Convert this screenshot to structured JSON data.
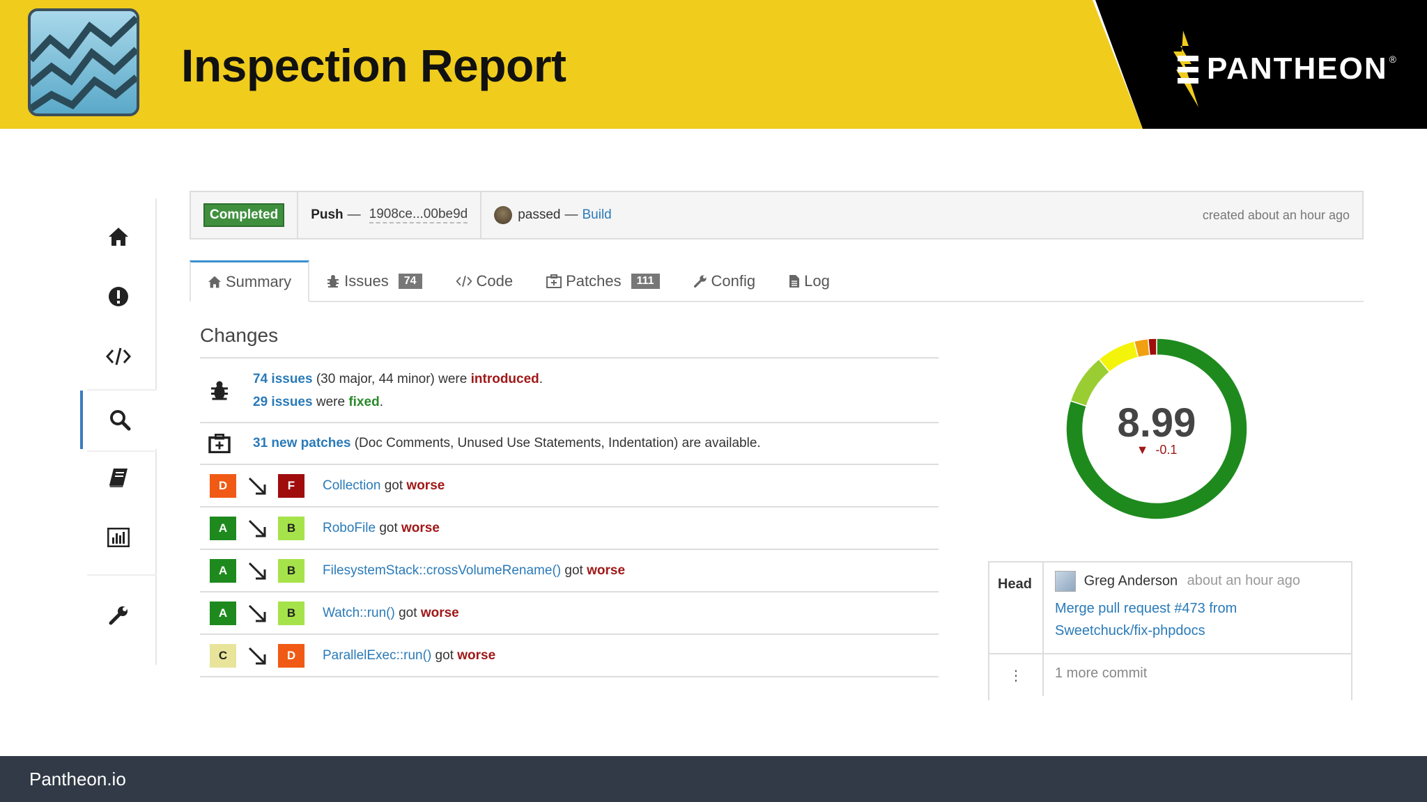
{
  "header": {
    "title": "Inspection Report",
    "brand": "PANTHEON",
    "brand_mark": "®"
  },
  "sidebar": {
    "items": [
      {
        "name": "home",
        "icon": "home-icon"
      },
      {
        "name": "issues",
        "icon": "exclamation-icon"
      },
      {
        "name": "code",
        "icon": "code-icon"
      },
      {
        "name": "inspect",
        "icon": "search-icon",
        "active": true
      },
      {
        "name": "docs",
        "icon": "book-icon"
      },
      {
        "name": "stats",
        "icon": "bar-chart-icon"
      },
      {
        "name": "settings",
        "icon": "wrench-icon"
      }
    ]
  },
  "status": {
    "badge": "Completed",
    "push_label": "Push",
    "dash": "—",
    "sha": "1908ce...00be9d",
    "result": "passed",
    "build_link": "Build",
    "created": "created about an hour ago"
  },
  "tabs": [
    {
      "label": "Summary",
      "icon": "home-icon"
    },
    {
      "label": "Issues",
      "count": "74",
      "icon": "bug-icon"
    },
    {
      "label": "Code",
      "icon": "code-icon"
    },
    {
      "label": "Patches",
      "count": "111",
      "icon": "medkit-icon"
    },
    {
      "label": "Config",
      "icon": "wrench-icon"
    },
    {
      "label": "Log",
      "icon": "file-icon"
    }
  ],
  "changes": {
    "title": "Changes",
    "issues_intro": {
      "count_link": "74 issues",
      "detail": " (30 major, 44 minor) were ",
      "status": "introduced",
      "end": "."
    },
    "issues_fixed": {
      "count_link": "29 issues",
      "detail": " were ",
      "status": "fixed",
      "end": "."
    },
    "patches": {
      "count_link": "31 new patches",
      "detail": " (Doc Comments, Unused Use Statements, Indentation) are available."
    },
    "grade_changes": [
      {
        "from": "D",
        "to": "F",
        "target": "Collection",
        "verb": " got ",
        "result": "worse"
      },
      {
        "from": "A",
        "to": "B",
        "target": "RoboFile",
        "verb": " got ",
        "result": "worse"
      },
      {
        "from": "A",
        "to": "B",
        "target": "FilesystemStack::crossVolumeRename()",
        "verb": " got ",
        "result": "worse"
      },
      {
        "from": "A",
        "to": "B",
        "target": "Watch::run()",
        "verb": " got ",
        "result": "worse"
      },
      {
        "from": "C",
        "to": "D",
        "target": "ParallelExec::run()",
        "verb": " got ",
        "result": "worse"
      }
    ],
    "grade_colors": {
      "A": "#1e8a1e",
      "B": "#a6e34a",
      "C": "#e8e59b",
      "D": "#f05a14",
      "F": "#a00c0c"
    }
  },
  "score": {
    "value": "8.99",
    "delta_arrow": "▼",
    "delta": "-0.1",
    "ring_segments": [
      {
        "fraction": 0.8,
        "color": "#1e8a1e"
      },
      {
        "fraction": 0.09,
        "color": "#9acd32"
      },
      {
        "fraction": 0.07,
        "color": "#f4f40a"
      },
      {
        "fraction": 0.025,
        "color": "#f0a010"
      },
      {
        "fraction": 0.015,
        "color": "#a00c0c"
      }
    ]
  },
  "commit": {
    "head_label": "Head",
    "author": "Greg Anderson",
    "time": "about an hour ago",
    "message_line1": "Merge pull request #473 from",
    "message_line2": "Sweetchuck/fix-phpdocs",
    "more_dots": "⋮",
    "more": "1 more commit"
  },
  "footer": {
    "text": "Pantheon.io"
  }
}
